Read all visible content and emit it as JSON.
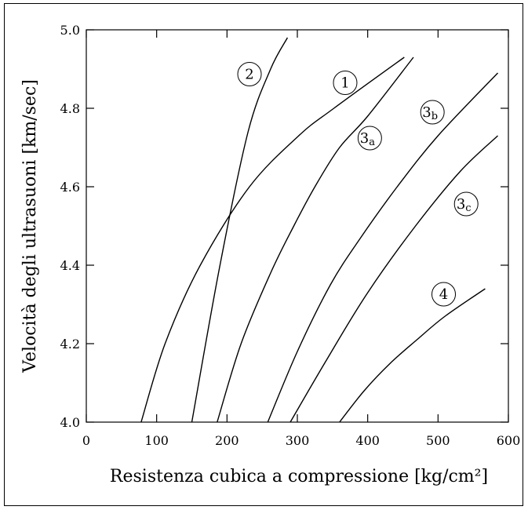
{
  "chart_data": {
    "type": "line",
    "title": "",
    "xlabel": "Resistenza cubica a compressione  [kg/cm²]",
    "ylabel": "Velocità degli ultrasuoni [km/sec]",
    "xlim": [
      0,
      600
    ],
    "ylim": [
      4.0,
      5.0
    ],
    "xticks": [
      0,
      100,
      200,
      300,
      400,
      500,
      600
    ],
    "xtick_labels": [
      "0",
      "100",
      "200",
      "300",
      "400",
      "500",
      "600"
    ],
    "yticks": [
      4.0,
      4.2,
      4.4,
      4.6,
      4.8,
      5.0
    ],
    "ytick_labels": [
      "4.0",
      "4.2",
      "4.4",
      "4.6",
      "4.8",
      "5.0"
    ],
    "grid": false,
    "line_color": "#000000",
    "series": [
      {
        "name": "2",
        "x": [
          150,
          190,
          230,
          262,
          286
        ],
        "y": [
          4.0,
          4.4,
          4.74,
          4.9,
          4.98
        ]
      },
      {
        "name": "1",
        "x": [
          78,
          112,
          162,
          232,
          302,
          352,
          452
        ],
        "y": [
          4.0,
          4.2,
          4.4,
          4.6,
          4.73,
          4.8,
          4.93
        ]
      },
      {
        "name": "3a",
        "x": [
          186,
          220,
          262,
          295,
          325,
          360,
          400,
          465
        ],
        "y": [
          4.0,
          4.2,
          4.38,
          4.5,
          4.6,
          4.7,
          4.78,
          4.93
        ]
      },
      {
        "name": "3b",
        "x": [
          258,
          300,
          347,
          390,
          442,
          500,
          585
        ],
        "y": [
          4.0,
          4.18,
          4.35,
          4.47,
          4.6,
          4.73,
          4.89
        ]
      },
      {
        "name": "3c",
        "x": [
          290,
          342,
          400,
          468,
          532,
          585
        ],
        "y": [
          4.0,
          4.16,
          4.33,
          4.5,
          4.64,
          4.73
        ]
      },
      {
        "name": "4",
        "x": [
          360,
          395,
          432,
          470,
          510,
          567
        ],
        "y": [
          4.0,
          4.08,
          4.15,
          4.21,
          4.27,
          4.34
        ]
      }
    ],
    "curve_labels": [
      {
        "text": "2",
        "x": 232,
        "y": 4.887
      },
      {
        "text": "1",
        "x": 368,
        "y": 4.865
      },
      {
        "text": "3",
        "sub": "a",
        "x": 403,
        "y": 4.724
      },
      {
        "text": "3",
        "sub": "b",
        "x": 492,
        "y": 4.79
      },
      {
        "text": "3",
        "sub": "c",
        "x": 540,
        "y": 4.556
      },
      {
        "text": "4",
        "x": 508,
        "y": 4.326
      }
    ]
  }
}
